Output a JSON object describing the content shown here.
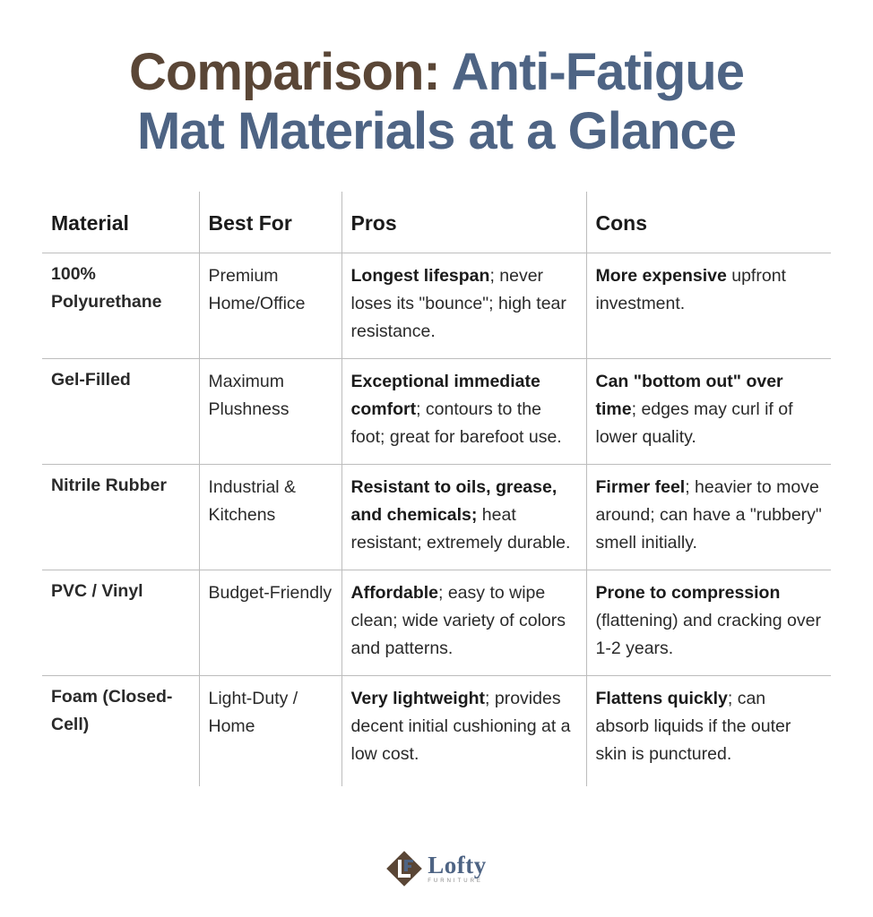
{
  "title": {
    "part1": "Comparison:",
    "part2": "Anti-Fatigue",
    "line2": "Mat Materials at a Glance"
  },
  "table": {
    "headers": [
      "Material",
      "Best For",
      "Pros",
      "Cons"
    ],
    "rows": [
      {
        "material": "100% Polyurethane",
        "best_for": "Premium Home/Office",
        "pros_bold": "Longest lifespan",
        "pros_rest": "; never loses its \"bounce\"; high tear resistance.",
        "cons_bold": "More expensive",
        "cons_rest": " upfront investment."
      },
      {
        "material": "Gel-Filled",
        "best_for": "Maximum Plushness",
        "pros_bold": "Exceptional immediate comfort",
        "pros_rest": "; contours to the foot; great for barefoot use.",
        "cons_bold": "Can \"bottom out\" over time",
        "cons_rest": "; edges may curl if of lower quality."
      },
      {
        "material": "Nitrile Rubber",
        "best_for": "Industrial & Kitchens",
        "pros_bold": "Resistant to oils, grease, and chemicals;",
        "pros_rest": " heat resistant; extremely durable.",
        "cons_bold": "Firmer feel",
        "cons_rest": "; heavier to move around; can have a \"rubbery\" smell initially."
      },
      {
        "material": "PVC / Vinyl",
        "best_for": "Budget-Friendly",
        "pros_bold": "Affordable",
        "pros_rest": "; easy to wipe clean; wide variety of colors and patterns.",
        "cons_bold": "Prone to compression",
        "cons_rest": " (flattening) and cracking over 1-2 years."
      },
      {
        "material": "Foam (Closed-Cell)",
        "best_for": "Light-Duty / Home",
        "pros_bold": "Very lightweight",
        "pros_rest": "; provides decent initial cushioning at a low cost.",
        "cons_bold": "Flattens quickly",
        "cons_rest": "; can absorb liquids if the outer skin is punctured."
      }
    ]
  },
  "logo": {
    "icon": "lofty-monogram-icon",
    "brand": "Lofty",
    "sub": "FURNITURE"
  },
  "colors": {
    "title_brown": "#5a4636",
    "title_blue": "#4e6484",
    "grid": "#bdbdbd"
  }
}
